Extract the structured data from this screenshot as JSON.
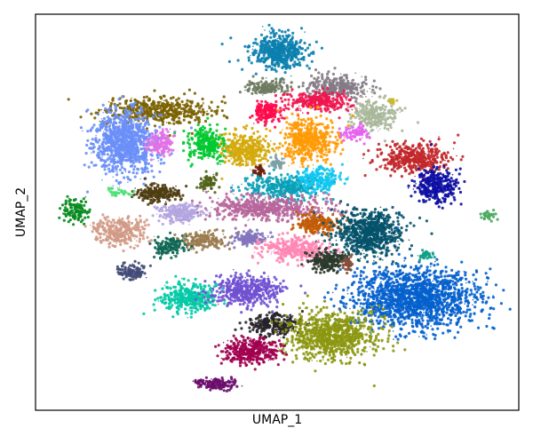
{
  "chart_data": {
    "type": "scatter",
    "xlabel": "UMAP_1",
    "ylabel": "UMAP_2",
    "ticks": "none",
    "grid": false,
    "legend": "none",
    "clusters": [
      {
        "id": 1,
        "color": "#0b7fae",
        "center": [
          312,
          58
        ],
        "spread": [
          28,
          18
        ],
        "n": 520
      },
      {
        "id": 2,
        "color": "#6d7a5f",
        "center": [
          300,
          99
        ],
        "spread": [
          24,
          7
        ],
        "n": 160
      },
      {
        "id": 3,
        "color": "#837b86",
        "center": [
          380,
          98
        ],
        "spread": [
          35,
          12
        ],
        "n": 300
      },
      {
        "id": 4,
        "color": "#f0154f",
        "center": [
          360,
          114
        ],
        "spread": [
          30,
          10
        ],
        "n": 300
      },
      {
        "id": 5,
        "color": "#ff0a4e",
        "center": [
          302,
          126
        ],
        "spread": [
          14,
          11
        ],
        "n": 170
      },
      {
        "id": 6,
        "color": "#a9b79a",
        "center": [
          420,
          130
        ],
        "spread": [
          24,
          18
        ],
        "n": 260
      },
      {
        "id": 7,
        "color": "#7a6200",
        "center": [
          180,
          125
        ],
        "spread": [
          55,
          14
        ],
        "n": 500
      },
      {
        "id": 8,
        "color": "#6a8ff7",
        "center": [
          140,
          160
        ],
        "spread": [
          32,
          32
        ],
        "n": 950
      },
      {
        "id": 9,
        "color": "#e071e6",
        "center": [
          180,
          160
        ],
        "spread": [
          14,
          12
        ],
        "n": 150
      },
      {
        "id": 10,
        "color": "#02c931",
        "center": [
          233,
          163
        ],
        "spread": [
          20,
          16
        ],
        "n": 300
      },
      {
        "id": 11,
        "color": "#d4a90a",
        "center": [
          276,
          168
        ],
        "spread": [
          24,
          17
        ],
        "n": 340
      },
      {
        "id": 12,
        "color": "#ff9a06",
        "center": [
          348,
          158
        ],
        "spread": [
          28,
          22
        ],
        "n": 520
      },
      {
        "id": 13,
        "color": "#e562f0",
        "center": [
          400,
          150
        ],
        "spread": [
          14,
          8
        ],
        "n": 80
      },
      {
        "id": 14,
        "color": "#c2272a",
        "center": [
          465,
          177
        ],
        "spread": [
          36,
          15
        ],
        "n": 420
      },
      {
        "id": 15,
        "color": "#0d0ea4",
        "center": [
          492,
          210
        ],
        "spread": [
          20,
          18
        ],
        "n": 330
      },
      {
        "id": 16,
        "color": "#6c2111",
        "center": [
          292,
          193
        ],
        "spread": [
          6,
          5
        ],
        "n": 40
      },
      {
        "id": 17,
        "color": "#0b9fb5",
        "center": [
          320,
          211
        ],
        "spread": [
          40,
          12
        ],
        "n": 380
      },
      {
        "id": 18,
        "color": "#11c8f2",
        "center": [
          358,
          202
        ],
        "spread": [
          22,
          12
        ],
        "n": 240
      },
      {
        "id": 19,
        "color": "#4f3d12",
        "center": [
          178,
          218
        ],
        "spread": [
          24,
          9
        ],
        "n": 220
      },
      {
        "id": 20,
        "color": "#526318",
        "center": [
          234,
          206
        ],
        "spread": [
          10,
          8
        ],
        "n": 70
      },
      {
        "id": 21,
        "color": "#05891d",
        "center": [
          85,
          237
        ],
        "spread": [
          14,
          12
        ],
        "n": 120
      },
      {
        "id": 22,
        "color": "#b3a5e0",
        "center": [
          205,
          240
        ],
        "spread": [
          22,
          10
        ],
        "n": 220
      },
      {
        "id": 23,
        "color": "#b7669b",
        "center": [
          300,
          234
        ],
        "spread": [
          55,
          12
        ],
        "n": 560
      },
      {
        "id": 24,
        "color": "#d29a86",
        "center": [
          135,
          260
        ],
        "spread": [
          26,
          14
        ],
        "n": 300
      },
      {
        "id": 25,
        "color": "#c15b07",
        "center": [
          356,
          252
        ],
        "spread": [
          25,
          10
        ],
        "n": 240
      },
      {
        "id": 26,
        "color": "#04526a",
        "center": [
          415,
          262
        ],
        "spread": [
          36,
          24
        ],
        "n": 750
      },
      {
        "id": 27,
        "color": "#0f6754",
        "center": [
          191,
          278
        ],
        "spread": [
          17,
          10
        ],
        "n": 150
      },
      {
        "id": 28,
        "color": "#9a7b4f",
        "center": [
          230,
          270
        ],
        "spread": [
          22,
          9
        ],
        "n": 160
      },
      {
        "id": 29,
        "color": "#8273bd",
        "center": [
          282,
          268
        ],
        "spread": [
          16,
          7
        ],
        "n": 120
      },
      {
        "id": 30,
        "color": "#ff86b3",
        "center": [
          332,
          281
        ],
        "spread": [
          36,
          12
        ],
        "n": 340
      },
      {
        "id": 31,
        "color": "#2b3a2b",
        "center": [
          370,
          294
        ],
        "spread": [
          22,
          10
        ],
        "n": 230
      },
      {
        "id": 32,
        "color": "#854c3a",
        "center": [
          391,
          298
        ],
        "spread": [
          5,
          7
        ],
        "n": 40
      },
      {
        "id": 33,
        "color": "#434b78",
        "center": [
          146,
          306
        ],
        "spread": [
          14,
          9
        ],
        "n": 120
      },
      {
        "id": 34,
        "color": "#03c9a6",
        "center": [
          214,
          336
        ],
        "spread": [
          28,
          15
        ],
        "n": 360
      },
      {
        "id": 35,
        "color": "#7051d2",
        "center": [
          277,
          327
        ],
        "spread": [
          34,
          16
        ],
        "n": 460
      },
      {
        "id": 36,
        "color": "#0461cd",
        "center": [
          468,
          336
        ],
        "spread": [
          64,
          30
        ],
        "n": 1600
      },
      {
        "id": 37,
        "color": "#27232a",
        "center": [
          308,
          366
        ],
        "spread": [
          26,
          11
        ],
        "n": 280
      },
      {
        "id": 38,
        "color": "#8b9710",
        "center": [
          374,
          378
        ],
        "spread": [
          45,
          24
        ],
        "n": 900
      },
      {
        "id": 39,
        "color": "#a1004f",
        "center": [
          283,
          395
        ],
        "spread": [
          27,
          13
        ],
        "n": 360
      },
      {
        "id": 40,
        "color": "#6a0d6c",
        "center": [
          243,
          432
        ],
        "spread": [
          20,
          6
        ],
        "n": 150
      },
      {
        "id": 41,
        "color": "#4aa85f",
        "center": [
          550,
          242
        ],
        "spread": [
          8,
          6
        ],
        "n": 30
      },
      {
        "id": 42,
        "color": "#4fe07a",
        "center": [
          132,
          216
        ],
        "spread": [
          12,
          4
        ],
        "n": 40
      },
      {
        "id": 43,
        "color": "#12a08a",
        "center": [
          478,
          287
        ],
        "spread": [
          10,
          4
        ],
        "n": 40
      },
      {
        "id": 44,
        "color": "#c9b832",
        "center": [
          441,
          114
        ],
        "spread": [
          6,
          3
        ],
        "n": 20
      },
      {
        "id": 45,
        "color": "#7ca0a5",
        "center": [
          312,
          184
        ],
        "spread": [
          8,
          5
        ],
        "n": 50
      }
    ]
  }
}
